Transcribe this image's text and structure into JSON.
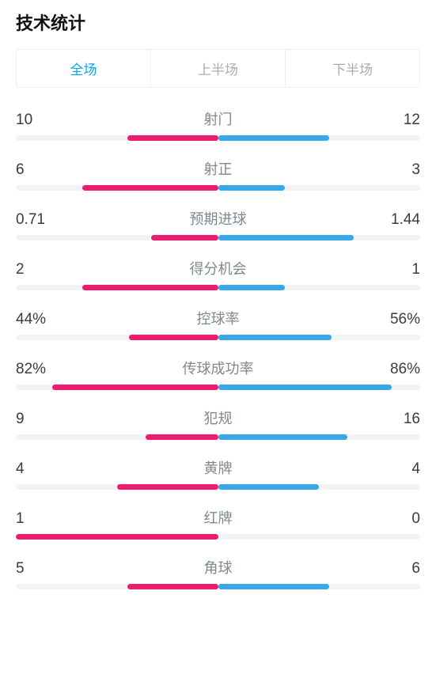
{
  "title": "技术统计",
  "colors": {
    "left": "#ec1d6e",
    "right": "#39a8e8",
    "track": "#f1f3f5",
    "tab_active": "#0aa5ec",
    "tab_inactive": "#a6adb4",
    "label": "#7f8890",
    "value": "#373c40"
  },
  "tabs": [
    {
      "label": "全场",
      "active": true
    },
    {
      "label": "上半场",
      "active": false
    },
    {
      "label": "下半场",
      "active": false
    }
  ],
  "stats": [
    {
      "label": "射门",
      "left_text": "10",
      "right_text": "12",
      "left_pct": 45,
      "right_pct": 55
    },
    {
      "label": "射正",
      "left_text": "6",
      "right_text": "3",
      "left_pct": 67,
      "right_pct": 33
    },
    {
      "label": "预期进球",
      "left_text": "0.71",
      "right_text": "1.44",
      "left_pct": 33,
      "right_pct": 67
    },
    {
      "label": "得分机会",
      "left_text": "2",
      "right_text": "1",
      "left_pct": 67,
      "right_pct": 33
    },
    {
      "label": "控球率",
      "left_text": "44%",
      "right_text": "56%",
      "left_pct": 44,
      "right_pct": 56
    },
    {
      "label": "传球成功率",
      "left_text": "82%",
      "right_text": "86%",
      "left_pct": 82,
      "right_pct": 86
    },
    {
      "label": "犯规",
      "left_text": "9",
      "right_text": "16",
      "left_pct": 36,
      "right_pct": 64
    },
    {
      "label": "黄牌",
      "left_text": "4",
      "right_text": "4",
      "left_pct": 50,
      "right_pct": 50
    },
    {
      "label": "红牌",
      "left_text": "1",
      "right_text": "0",
      "left_pct": 100,
      "right_pct": 0
    },
    {
      "label": "角球",
      "left_text": "5",
      "right_text": "6",
      "left_pct": 45,
      "right_pct": 55
    }
  ]
}
